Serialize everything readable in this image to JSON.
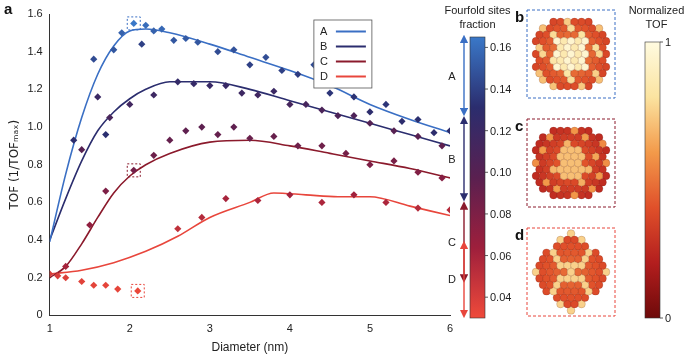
{
  "chart_data": {
    "type": "scatter",
    "panel_label": "a",
    "x_label": "Diameter (nm)",
    "y_label": "TOF (1/TOFₘₐₓ)",
    "xlim": [
      1,
      6
    ],
    "xticks": [
      1,
      2,
      3,
      4,
      5,
      6
    ],
    "ylim": [
      0,
      1.6
    ],
    "yticks": [
      0,
      0.2,
      0.4,
      0.6,
      0.8,
      {
        "value": 1,
        "label": "1.0"
      },
      1.2,
      1.4,
      1.6
    ],
    "grid": false,
    "legend": "upper right",
    "marker": "diamond",
    "series": [
      {
        "name": "A",
        "type": "line",
        "color": "#3a6fc4",
        "x": [
          1,
          1.2,
          1.4,
          1.6,
          1.8,
          2.0,
          2.2,
          2.5,
          3,
          3.5,
          4,
          4.5,
          5,
          5.5,
          6
        ],
        "values": [
          0.39,
          0.75,
          1.05,
          1.28,
          1.43,
          1.51,
          1.52,
          1.5,
          1.44,
          1.37,
          1.3,
          1.22,
          1.12,
          1.04,
          0.97
        ]
      },
      {
        "name": "B",
        "type": "line",
        "color": "#2b2d6e",
        "x": [
          1,
          1.2,
          1.4,
          1.6,
          1.8,
          2.0,
          2.2,
          2.5,
          3,
          3.5,
          4,
          4.5,
          5,
          5.5,
          6
        ],
        "values": [
          0.4,
          0.62,
          0.82,
          0.98,
          1.08,
          1.15,
          1.2,
          1.24,
          1.24,
          1.2,
          1.14,
          1.08,
          1.02,
          0.96,
          0.9
        ]
      },
      {
        "name": "C",
        "type": "line",
        "color": "#8b1a2c",
        "x": [
          1,
          1.2,
          1.4,
          1.6,
          1.8,
          2.0,
          2.2,
          2.5,
          3,
          3.5,
          4,
          4.5,
          5,
          5.5,
          6
        ],
        "values": [
          0.2,
          0.26,
          0.38,
          0.52,
          0.65,
          0.74,
          0.8,
          0.86,
          0.92,
          0.93,
          0.9,
          0.86,
          0.82,
          0.78,
          0.73
        ]
      },
      {
        "name": "D",
        "type": "line",
        "color": "#e8463c",
        "x": [
          1,
          1.4,
          1.8,
          2.2,
          2.6,
          3,
          3.5,
          3.8,
          4.2,
          4.6,
          5,
          5.5,
          6
        ],
        "values": [
          0.22,
          0.24,
          0.28,
          0.34,
          0.42,
          0.52,
          0.6,
          0.65,
          0.64,
          0.63,
          0.63,
          0.58,
          0.53
        ]
      }
    ],
    "points": {
      "x": [
        1.3,
        1.55,
        1.7,
        1.8,
        1.9,
        2.05,
        2.15,
        2.2,
        2.3,
        2.4,
        2.55,
        2.7,
        2.85,
        3.1,
        3.3,
        3.5,
        3.7,
        3.9,
        4.1,
        4.3,
        4.5,
        4.8,
        5.0,
        5.2,
        5.4,
        5.6,
        5.8,
        6.0,
        1.4,
        1.6,
        1.75,
        2.0,
        2.3,
        2.6,
        2.8,
        3.0,
        3.2,
        3.4,
        3.6,
        3.8,
        4.0,
        4.2,
        4.4,
        4.6,
        4.8,
        5.0,
        5.3,
        5.6,
        5.9,
        1.2,
        1.5,
        1.7,
        2.05,
        2.3,
        2.5,
        2.7,
        2.9,
        3.1,
        3.3,
        3.5,
        3.8,
        4.1,
        4.4,
        4.7,
        5.0,
        5.3,
        5.6,
        5.9,
        1.0,
        1.1,
        1.2,
        1.4,
        1.55,
        1.7,
        1.85,
        2.1,
        2.6,
        2.9,
        3.2,
        3.6,
        4.0,
        4.4,
        4.8,
        5.2,
        5.6,
        6.0
      ],
      "y": [
        0.93,
        1.36,
        0.96,
        1.41,
        1.5,
        1.55,
        1.44,
        1.54,
        1.51,
        1.52,
        1.46,
        1.47,
        1.45,
        1.4,
        1.41,
        1.33,
        1.37,
        1.3,
        1.28,
        1.33,
        1.18,
        1.16,
        1.08,
        1.12,
        1.03,
        1.04,
        0.97,
        0.98,
        0.88,
        1.16,
        1.05,
        1.12,
        1.17,
        1.24,
        1.23,
        1.22,
        1.22,
        1.18,
        1.17,
        1.19,
        1.12,
        1.12,
        1.09,
        1.06,
        1.06,
        1.02,
        0.98,
        0.95,
        0.9,
        0.26,
        0.48,
        0.66,
        0.77,
        0.85,
        0.93,
        0.98,
        1.0,
        0.96,
        1.0,
        0.94,
        0.95,
        0.9,
        0.9,
        0.86,
        0.8,
        0.82,
        0.76,
        0.73,
        0.22,
        0.21,
        0.2,
        0.18,
        0.16,
        0.16,
        0.14,
        0.13,
        0.46,
        0.52,
        0.62,
        0.61,
        0.64,
        0.6,
        0.64,
        0.6,
        0.57,
        0.56
      ],
      "fourfold_fraction": [
        0.13,
        0.145,
        0.132,
        0.15,
        0.155,
        0.165,
        0.14,
        0.16,
        0.155,
        0.158,
        0.15,
        0.152,
        0.15,
        0.145,
        0.148,
        0.14,
        0.146,
        0.14,
        0.138,
        0.145,
        0.135,
        0.134,
        0.13,
        0.135,
        0.13,
        0.132,
        0.13,
        0.13,
        0.1,
        0.12,
        0.11,
        0.115,
        0.118,
        0.125,
        0.124,
        0.122,
        0.122,
        0.118,
        0.116,
        0.12,
        0.112,
        0.112,
        0.108,
        0.106,
        0.106,
        0.102,
        0.1,
        0.098,
        0.095,
        0.06,
        0.07,
        0.08,
        0.085,
        0.088,
        0.092,
        0.095,
        0.096,
        0.092,
        0.095,
        0.09,
        0.091,
        0.087,
        0.087,
        0.084,
        0.08,
        0.082,
        0.078,
        0.076,
        0.04,
        0.04,
        0.038,
        0.036,
        0.035,
        0.034,
        0.034,
        0.032,
        0.05,
        0.055,
        0.06,
        0.058,
        0.062,
        0.058,
        0.062,
        0.058,
        0.055,
        0.054
      ]
    },
    "highlights": [
      {
        "x": 2.05,
        "y": 1.55,
        "color": "#3a6fc4"
      },
      {
        "x": 2.05,
        "y": 0.77,
        "color": "#8b1a2c"
      },
      {
        "x": 2.1,
        "y": 0.13,
        "color": "#e8463c"
      }
    ],
    "colorbar": {
      "title": "Fourfold sites fraction",
      "range": [
        0.03,
        0.165
      ],
      "ticks": [
        0.04,
        0.06,
        0.08,
        {
          "value": 0.1,
          "label": "0.10"
        },
        0.12,
        0.14,
        0.16
      ],
      "colors": [
        "#ef4a3a",
        "#9e1f3c",
        "#5a2050",
        "#2b2d6e",
        "#3a78c8"
      ],
      "brackets": [
        {
          "name": "A",
          "range": [
            0.128,
            0.165
          ]
        },
        {
          "name": "B",
          "range": [
            0.087,
            0.126
          ]
        },
        {
          "name": "C",
          "range": [
            0.048,
            0.085
          ]
        },
        {
          "name": "D",
          "range": [
            0.031,
            0.066
          ]
        }
      ]
    }
  },
  "panels": [
    {
      "label": "b"
    },
    {
      "label": "c"
    },
    {
      "label": "d"
    }
  ],
  "tof_colorbar": {
    "title": "Normalized TOF",
    "range": [
      0,
      1
    ],
    "ticks": [
      0,
      1
    ],
    "colors": [
      "#6e0a0a",
      "#b31e1e",
      "#e0502a",
      "#f39a4a",
      "#fbe3a0",
      "#fffbe0"
    ]
  }
}
